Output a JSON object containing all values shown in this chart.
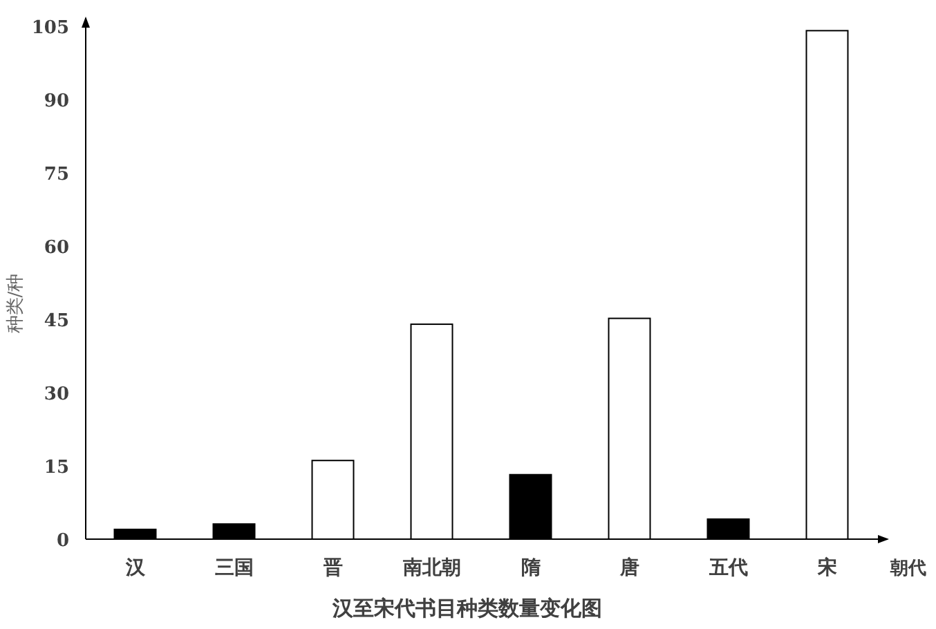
{
  "chart_data": {
    "type": "bar",
    "title": "汉至宋代书目种类数量变化图",
    "xlabel": "朝代",
    "ylabel": "种类/种",
    "categories": [
      "汉",
      "三国",
      "晋",
      "南北朝",
      "隋",
      "唐",
      "五代",
      "宋"
    ],
    "values": [
      2.0,
      3.1,
      16.1,
      44.0,
      13.2,
      45.2,
      4.1,
      104.1
    ],
    "colors": [
      "#000000",
      "#000000",
      "#ffffff",
      "#ffffff",
      "#000000",
      "#ffffff",
      "#000000",
      "#ffffff"
    ],
    "ylim": [
      0,
      105
    ],
    "yticks": [
      0,
      15,
      30,
      45,
      60,
      75,
      90,
      105
    ],
    "grid": false
  }
}
